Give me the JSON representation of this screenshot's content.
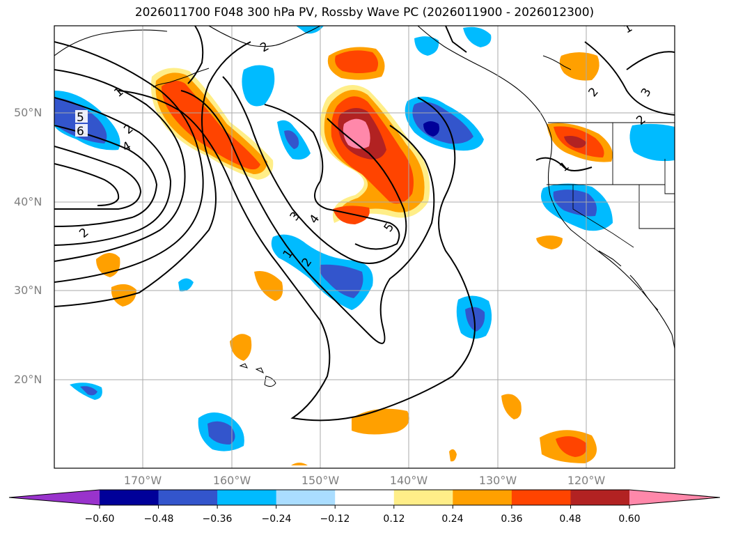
{
  "title": "2026011700 F048 300 hPa PV, Rossby Wave PC (2026011900 - 2026012300)",
  "axes": {
    "lat_labels": [
      "50°N",
      "40°N",
      "30°N",
      "20°N"
    ],
    "lon_labels": [
      "170°W",
      "160°W",
      "150°W",
      "140°W",
      "130°W",
      "120°W"
    ]
  },
  "colorbar": {
    "ticks": [
      "−0.60",
      "−0.48",
      "−0.36",
      "−0.24",
      "−0.12",
      "0.12",
      "0.24",
      "0.36",
      "0.48",
      "0.60"
    ],
    "colors": [
      "#9933cc",
      "#000099",
      "#3355cc",
      "#00bbff",
      "#aaddff",
      "#ffffff",
      "#ffee88",
      "#ffa000",
      "#ff4400",
      "#b22222",
      "#ff88aa"
    ]
  },
  "contour_labels": [
    "1",
    "2",
    "3",
    "4",
    "5",
    "6"
  ]
}
